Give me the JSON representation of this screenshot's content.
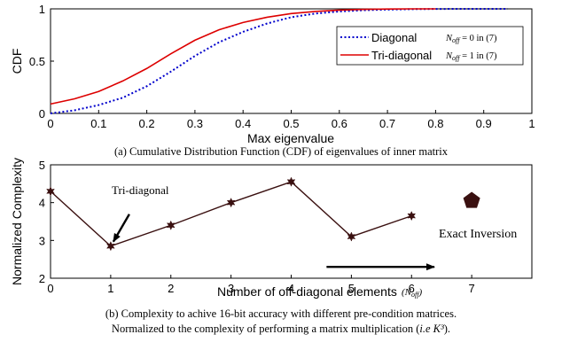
{
  "chart_data": [
    {
      "type": "line",
      "xlabel": "Max eigenvalue",
      "ylabel": "CDF",
      "xlim": [
        0,
        1
      ],
      "ylim": [
        0,
        1
      ],
      "xticks": [
        "0",
        "0.1",
        "0.2",
        "0.3",
        "0.4",
        "0.5",
        "0.6",
        "0.7",
        "0.8",
        "0.9",
        "1"
      ],
      "yticks": [
        "0",
        "0.5",
        "1"
      ],
      "grid": false,
      "legend_position": "center-right",
      "series": [
        {
          "name": "Diagonal",
          "legend_note": "N_off = 0 in (7)",
          "color": "#0000cc",
          "style": "dotted",
          "x": [
            0,
            0.05,
            0.1,
            0.15,
            0.2,
            0.25,
            0.3,
            0.35,
            0.4,
            0.45,
            0.5,
            0.55,
            0.6,
            0.65,
            0.7,
            0.75,
            0.8,
            0.85,
            0.9,
            0.95
          ],
          "y": [
            0.0,
            0.03,
            0.08,
            0.15,
            0.26,
            0.4,
            0.55,
            0.68,
            0.78,
            0.86,
            0.92,
            0.955,
            0.975,
            0.987,
            0.993,
            0.997,
            0.999,
            1.0,
            1.0,
            1.0
          ]
        },
        {
          "name": "Tri-diagonal",
          "legend_note": "N_off = 1 in (7)",
          "color": "#dd0000",
          "style": "solid",
          "x": [
            0,
            0.05,
            0.1,
            0.15,
            0.2,
            0.25,
            0.3,
            0.35,
            0.4,
            0.45,
            0.5,
            0.55,
            0.6,
            0.65,
            0.7,
            0.75,
            0.8
          ],
          "y": [
            0.09,
            0.14,
            0.21,
            0.31,
            0.43,
            0.57,
            0.7,
            0.8,
            0.87,
            0.92,
            0.955,
            0.975,
            0.988,
            0.995,
            0.998,
            1.0,
            1.0
          ]
        }
      ],
      "caption": "(a) Cumulative Distribution Function (CDF) of eigenvalues of inner matrix"
    },
    {
      "type": "line",
      "xlabel": "Number of off-diagonal elements",
      "xlabel_note": "(N_off)",
      "ylabel": "Normalized Complexity",
      "xlim": [
        0,
        8
      ],
      "ylim": [
        2,
        5
      ],
      "xticks": [
        "0",
        "1",
        "2",
        "3",
        "4",
        "5",
        "6",
        "7"
      ],
      "yticks": [
        "2",
        "3",
        "4",
        "5"
      ],
      "grid": false,
      "series": [
        {
          "name": "",
          "color": "#3a1010",
          "marker": "star",
          "segments": [
            {
              "x": [
                0,
                1,
                2,
                3,
                4,
                5
              ],
              "y": [
                4.3,
                2.85,
                3.4,
                4.0,
                4.55,
                3.1
              ]
            },
            {
              "x": [
                5,
                6
              ],
              "y": [
                3.1,
                3.65
              ]
            }
          ]
        },
        {
          "name": "Exact Inversion",
          "color": "#3a1010",
          "marker": "pentagon",
          "x": [
            7
          ],
          "y": [
            4.05
          ]
        }
      ],
      "annotations": [
        {
          "text": "Tri-diagonal",
          "points_to": [
            1,
            2.85
          ]
        },
        {
          "text": "Exact Inversion",
          "arrow_from": [
            5,
            2.3
          ],
          "arrow_to": [
            6.6,
            2.3
          ]
        }
      ],
      "caption_line1": "(b) Complexity to achive 16-bit accuracy with different pre-condition matrices.",
      "caption_line2_prefix": "Normalized to the complexity of performing a matrix multiplication (",
      "caption_line2_math": "i.e K³",
      "caption_line2_suffix": ")."
    }
  ]
}
